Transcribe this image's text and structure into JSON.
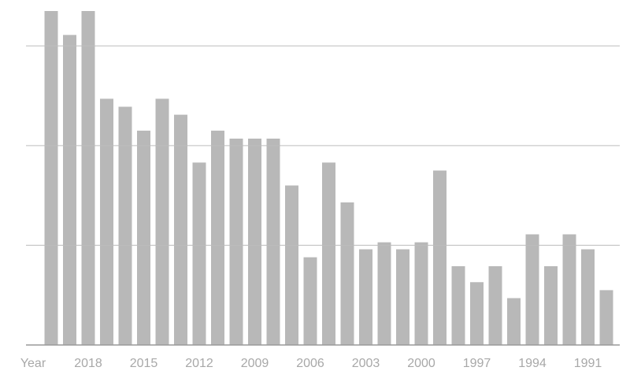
{
  "chart_data": {
    "type": "bar",
    "x_label": "Year",
    "categories": [
      null,
      null,
      "2018",
      null,
      null,
      "2015",
      null,
      null,
      "2012",
      null,
      null,
      "2009",
      null,
      null,
      "2006",
      null,
      null,
      "2003",
      null,
      null,
      "2000",
      null,
      null,
      "1997",
      null,
      null,
      "1994",
      null,
      null,
      "1991",
      null
    ],
    "values": [
      33.5,
      31.1,
      33.5,
      24.7,
      23.9,
      21.5,
      24.7,
      23.1,
      18.3,
      21.5,
      20.7,
      20.7,
      20.7,
      16.0,
      8.8,
      18.3,
      14.3,
      9.6,
      10.3,
      9.6,
      10.3,
      17.5,
      7.9,
      6.3,
      7.9,
      4.7,
      11.1,
      7.9,
      11.1,
      9.6,
      5.5
    ],
    "color": "#b8b8b8",
    "ylim": [
      0,
      33.5
    ],
    "yticks": [
      0,
      10,
      20,
      30
    ],
    "grid": true
  }
}
